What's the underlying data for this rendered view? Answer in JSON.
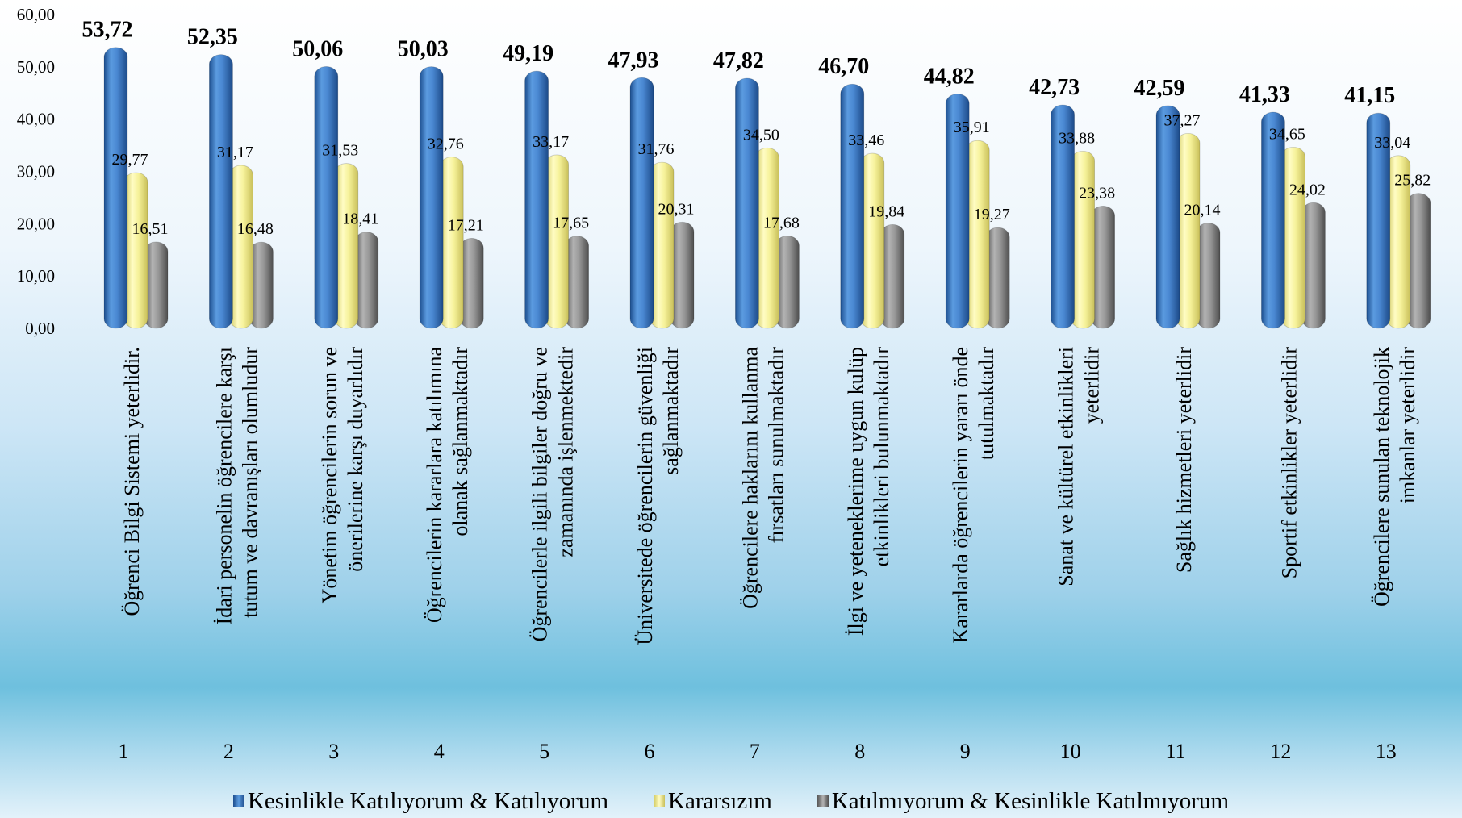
{
  "chart_data": {
    "type": "bar",
    "categories": [
      "1",
      "2",
      "3",
      "4",
      "5",
      "6",
      "7",
      "8",
      "9",
      "10",
      "11",
      "12",
      "13"
    ],
    "category_labels": [
      [
        "Öğrenci Bilgi Sistemi yeterlidir."
      ],
      [
        "İdari personelin öğrencilere karşı",
        "tutum ve davranışları olumludur"
      ],
      [
        "Yönetim öğrencilerin sorun ve",
        "önerilerine karşı duyarlıdır"
      ],
      [
        "Öğrencilerin kararlara katılımına",
        "olanak sağlanmaktadır"
      ],
      [
        "Öğrencilerle ilgili bilgiler doğru ve",
        "zamanında işlenmektedir"
      ],
      [
        "Üniversitede öğrencilerin güvenliği",
        "sağlanmaktadır"
      ],
      [
        "Öğrencilere haklarını kullanma",
        "fırsatları sunulmaktadır"
      ],
      [
        "İlgi ve yeteneklerime uygun kulüp",
        "etkinlikleri bulunmaktadır"
      ],
      [
        "Kararlarda öğrencilerin yararı önde",
        "tutulmaktadır"
      ],
      [
        "Sanat ve kültürel etkinlikleri",
        "yeterlidir"
      ],
      [
        "Sağlık hizmetleri yeterlidir"
      ],
      [
        "Sportif etkinlikler yeterlidir"
      ],
      [
        "Öğrencilere sunulan teknolojik",
        "imkanlar yeterlidir"
      ]
    ],
    "series": [
      {
        "name": "Kesinlikle Katılıyorum & Katılıyorum",
        "color": "#3a78c4",
        "values": [
          53.72,
          52.35,
          50.06,
          50.03,
          49.19,
          47.93,
          47.82,
          46.7,
          44.82,
          42.73,
          42.59,
          41.33,
          41.15
        ],
        "labels": [
          "53,72",
          "52,35",
          "50,06",
          "50,03",
          "49,19",
          "47,93",
          "47,82",
          "46,70",
          "44,82",
          "42,73",
          "42,59",
          "41,33",
          "41,15"
        ]
      },
      {
        "name": "Kararsızım",
        "color": "#f2ee8c",
        "values": [
          29.77,
          31.17,
          31.53,
          32.76,
          33.17,
          31.76,
          34.5,
          33.46,
          35.91,
          33.88,
          37.27,
          34.65,
          33.04
        ],
        "labels": [
          "29,77",
          "31,17",
          "31,53",
          "32,76",
          "33,17",
          "31,76",
          "34,50",
          "33,46",
          "35,91",
          "33,88",
          "37,27",
          "34,65",
          "33,04"
        ]
      },
      {
        "name": "Katılmıyorum & Kesinlikle Katılmıyorum",
        "color": "#8c8c8c",
        "values": [
          16.51,
          16.48,
          18.41,
          17.21,
          17.65,
          20.31,
          17.68,
          19.84,
          19.27,
          23.38,
          20.14,
          24.02,
          25.82
        ],
        "labels": [
          "16,51",
          "16,48",
          "18,41",
          "17,21",
          "17,65",
          "20,31",
          "17,68",
          "19,84",
          "19,27",
          "23,38",
          "20,14",
          "24,02",
          "25,82"
        ]
      }
    ],
    "y_ticks": [
      "0,00",
      "10,00",
      "20,00",
      "30,00",
      "40,00",
      "50,00",
      "60,00"
    ],
    "ylim": [
      0,
      60
    ],
    "grid": false,
    "legend_position": "bottom"
  }
}
